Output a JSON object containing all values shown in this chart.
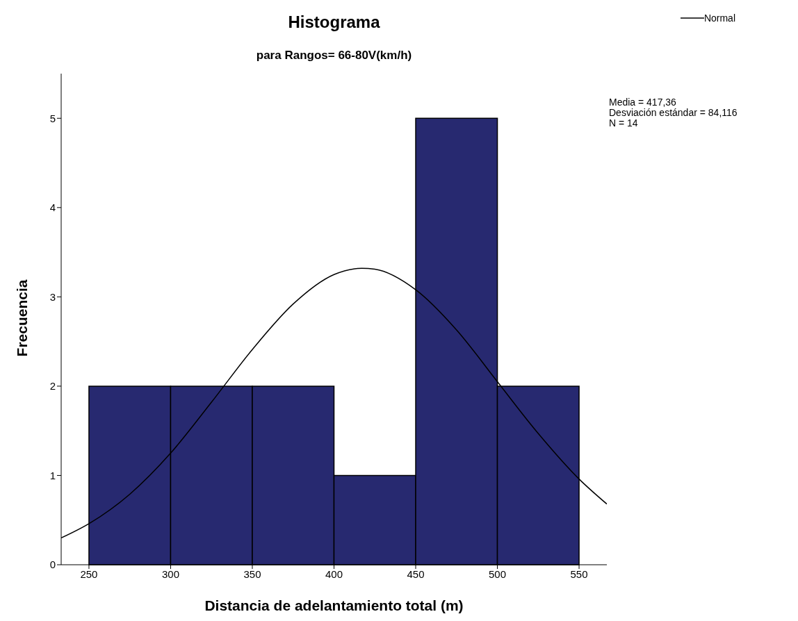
{
  "chart_data": {
    "type": "histogram",
    "title": "Histograma",
    "subtitle": "para Rangos= 66-80V(km/h)",
    "xlabel": "Distancia de adelantamiento total (m)",
    "ylabel": "Frecuencia",
    "bins": [
      250,
      300,
      350,
      400,
      450,
      500,
      550
    ],
    "values": [
      2,
      2,
      2,
      1,
      5,
      2
    ],
    "color": "#272970",
    "series": [
      {
        "name": "Normal",
        "type": "line",
        "color": "#000000",
        "x": [
          233,
          250,
          275,
          300,
          325,
          350,
          375,
          400,
          417,
          425,
          450,
          475,
          500,
          525,
          550,
          567
        ],
        "values": [
          0.3,
          0.46,
          0.79,
          1.25,
          1.82,
          2.41,
          2.92,
          3.25,
          3.32,
          3.31,
          3.08,
          2.63,
          2.05,
          1.47,
          0.96,
          0.68
        ]
      }
    ],
    "xlim": [
      233,
      567
    ],
    "xticks": [
      250,
      300,
      350,
      400,
      450,
      500,
      550
    ],
    "ylim": [
      0,
      5.5
    ],
    "yticks": [
      0,
      1,
      2,
      3,
      4,
      5
    ],
    "grid": false,
    "legend": "top right",
    "marker": "none",
    "line_style": "solid",
    "annotations": [
      "Media = 417,36",
      "Desviación estándar = 84,116",
      "N = 14"
    ]
  }
}
